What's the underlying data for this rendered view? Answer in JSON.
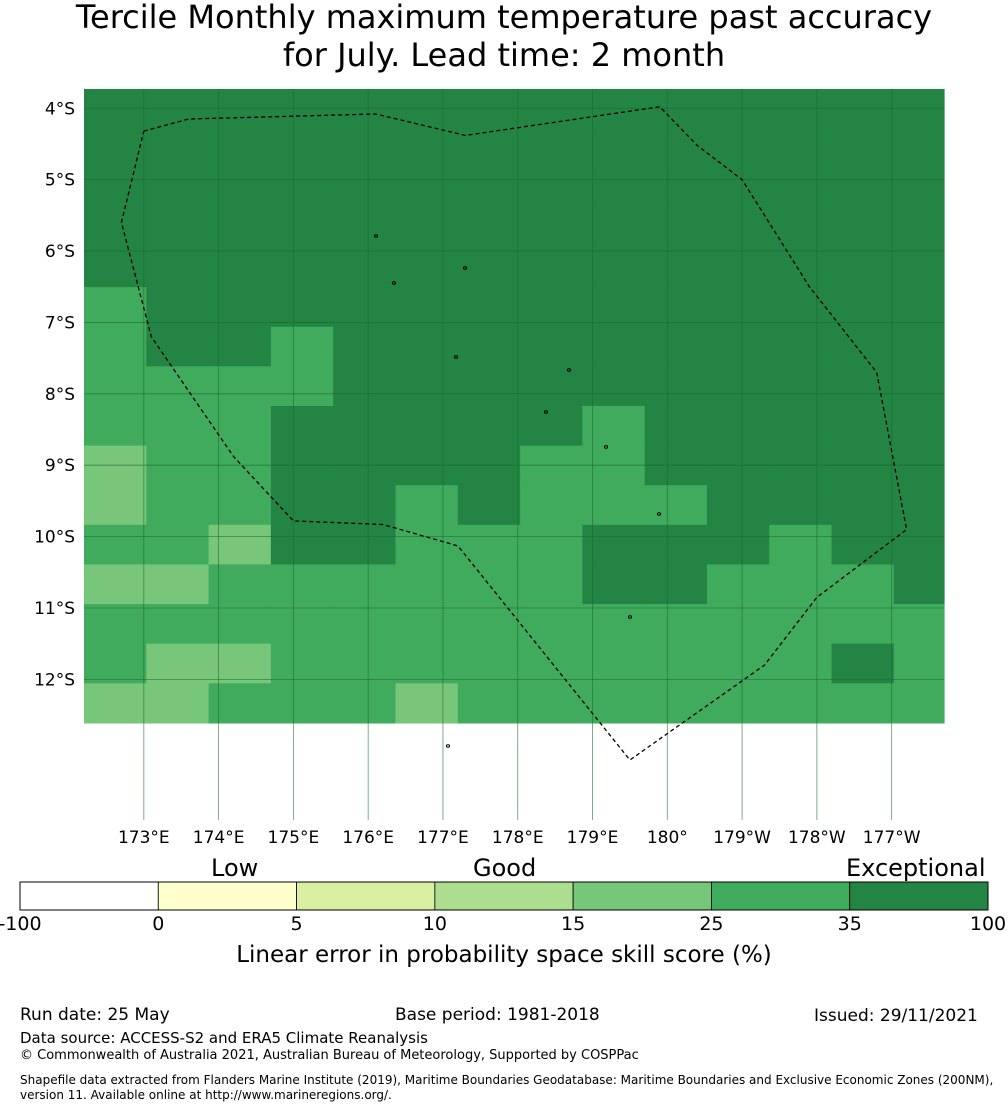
{
  "title": {
    "line1": "Tercile Monthly maximum temperature past accuracy",
    "line2": "for July. Lead time: 2 month"
  },
  "chart_data": {
    "type": "heatmap",
    "lat_labels": [
      "4°S",
      "5°S",
      "6°S",
      "7°S",
      "8°S",
      "9°S",
      "10°S",
      "11°S",
      "12°S"
    ],
    "lon_labels": [
      "173°E",
      "174°E",
      "175°E",
      "176°E",
      "177°E",
      "178°E",
      "179°E",
      "180°",
      "179°W",
      "178°W",
      "177°W"
    ],
    "xlim": [
      172.2,
      183.7
    ],
    "ylim": [
      -13.97,
      -3.73
    ],
    "grid": true,
    "cell_lon_width": 0.833,
    "cell_lat_height": 0.555,
    "lon_start": 172.2,
    "lat_start": -3.73,
    "grid_values": [
      [
        40,
        40,
        40,
        40,
        40,
        40,
        40,
        40,
        40,
        40,
        40,
        40,
        40,
        40
      ],
      [
        40,
        40,
        40,
        40,
        40,
        40,
        40,
        40,
        40,
        40,
        40,
        40,
        40,
        40
      ],
      [
        40,
        40,
        40,
        40,
        40,
        40,
        40,
        40,
        40,
        40,
        40,
        40,
        40,
        40
      ],
      [
        40,
        40,
        40,
        40,
        40,
        40,
        40,
        40,
        40,
        40,
        40,
        40,
        40,
        40
      ],
      [
        40,
        40,
        40,
        40,
        40,
        40,
        40,
        40,
        40,
        40,
        40,
        40,
        40,
        40
      ],
      [
        30,
        40,
        40,
        40,
        40,
        40,
        40,
        40,
        40,
        40,
        40,
        40,
        40,
        40
      ],
      [
        30,
        40,
        40,
        30,
        40,
        40,
        40,
        40,
        40,
        40,
        40,
        40,
        40,
        40
      ],
      [
        30,
        30,
        30,
        30,
        40,
        40,
        40,
        40,
        40,
        40,
        40,
        40,
        40,
        40
      ],
      [
        30,
        30,
        30,
        40,
        40,
        40,
        40,
        40,
        30,
        40,
        40,
        40,
        40,
        40
      ],
      [
        20,
        30,
        30,
        40,
        40,
        40,
        40,
        30,
        30,
        40,
        40,
        40,
        40,
        40
      ],
      [
        20,
        30,
        30,
        40,
        40,
        30,
        40,
        30,
        30,
        30,
        40,
        40,
        40,
        40
      ],
      [
        30,
        30,
        20,
        40,
        40,
        30,
        30,
        30,
        40,
        40,
        40,
        30,
        40,
        40
      ],
      [
        20,
        20,
        30,
        30,
        30,
        30,
        30,
        30,
        40,
        40,
        30,
        30,
        30,
        40
      ],
      [
        30,
        30,
        30,
        30,
        30,
        30,
        30,
        30,
        30,
        30,
        30,
        30,
        30,
        30
      ],
      [
        30,
        20,
        20,
        30,
        30,
        30,
        30,
        30,
        30,
        30,
        30,
        30,
        40,
        30
      ],
      [
        20,
        20,
        30,
        30,
        30,
        20,
        30,
        30,
        30,
        30,
        30,
        30,
        30,
        30
      ]
    ],
    "colorbar": {
      "label": "Linear error in probability space skill score (%)",
      "ticks": [
        "-100",
        "0",
        "5",
        "10",
        "15",
        "25",
        "35",
        "100"
      ],
      "colors": [
        "#ffffff",
        "#ffffcc",
        "#d9f0a3",
        "#addd8e",
        "#78c679",
        "#41ab5d",
        "#238443"
      ],
      "categories": [
        "Low",
        "Good",
        "Exceptional"
      ]
    },
    "eez_boundary_lonlat": [
      [
        173.0,
        -4.32
      ],
      [
        173.6,
        -4.15
      ],
      [
        176.1,
        -4.08
      ],
      [
        177.3,
        -4.38
      ],
      [
        179.9,
        -3.98
      ],
      [
        180.4,
        -4.52
      ],
      [
        181.0,
        -5.0
      ],
      [
        181.9,
        -6.5
      ],
      [
        182.8,
        -7.7
      ],
      [
        183.2,
        -9.9
      ],
      [
        182.0,
        -10.85
      ],
      [
        181.3,
        -11.8
      ],
      [
        179.5,
        -13.13
      ],
      [
        177.2,
        -10.13
      ],
      [
        176.2,
        -9.83
      ],
      [
        175.0,
        -9.78
      ],
      [
        174.2,
        -8.88
      ],
      [
        173.1,
        -7.2
      ],
      [
        172.7,
        -5.6
      ],
      [
        173.0,
        -4.32
      ]
    ]
  },
  "footer": {
    "run_date": "Run date: 25 May",
    "base_period": "Base period: 1981-2018",
    "issued": "Issued: 29/11/2021",
    "data_source": "Data source: ACCESS-S2 and ERA5 Climate Reanalysis",
    "copyright": "© Commonwealth of Australia 2021, Australian Bureau of Meteorology, Supported by COSPPac",
    "shapefile_line1": "Shapefile data extracted from Flanders Marine Institute (2019), Maritime Boundaries Geodatabase: Maritime Boundaries and Exclusive Economic Zones (200NM),",
    "shapefile_line2": "version 11. Available online at http://www.marineregions.org/."
  }
}
